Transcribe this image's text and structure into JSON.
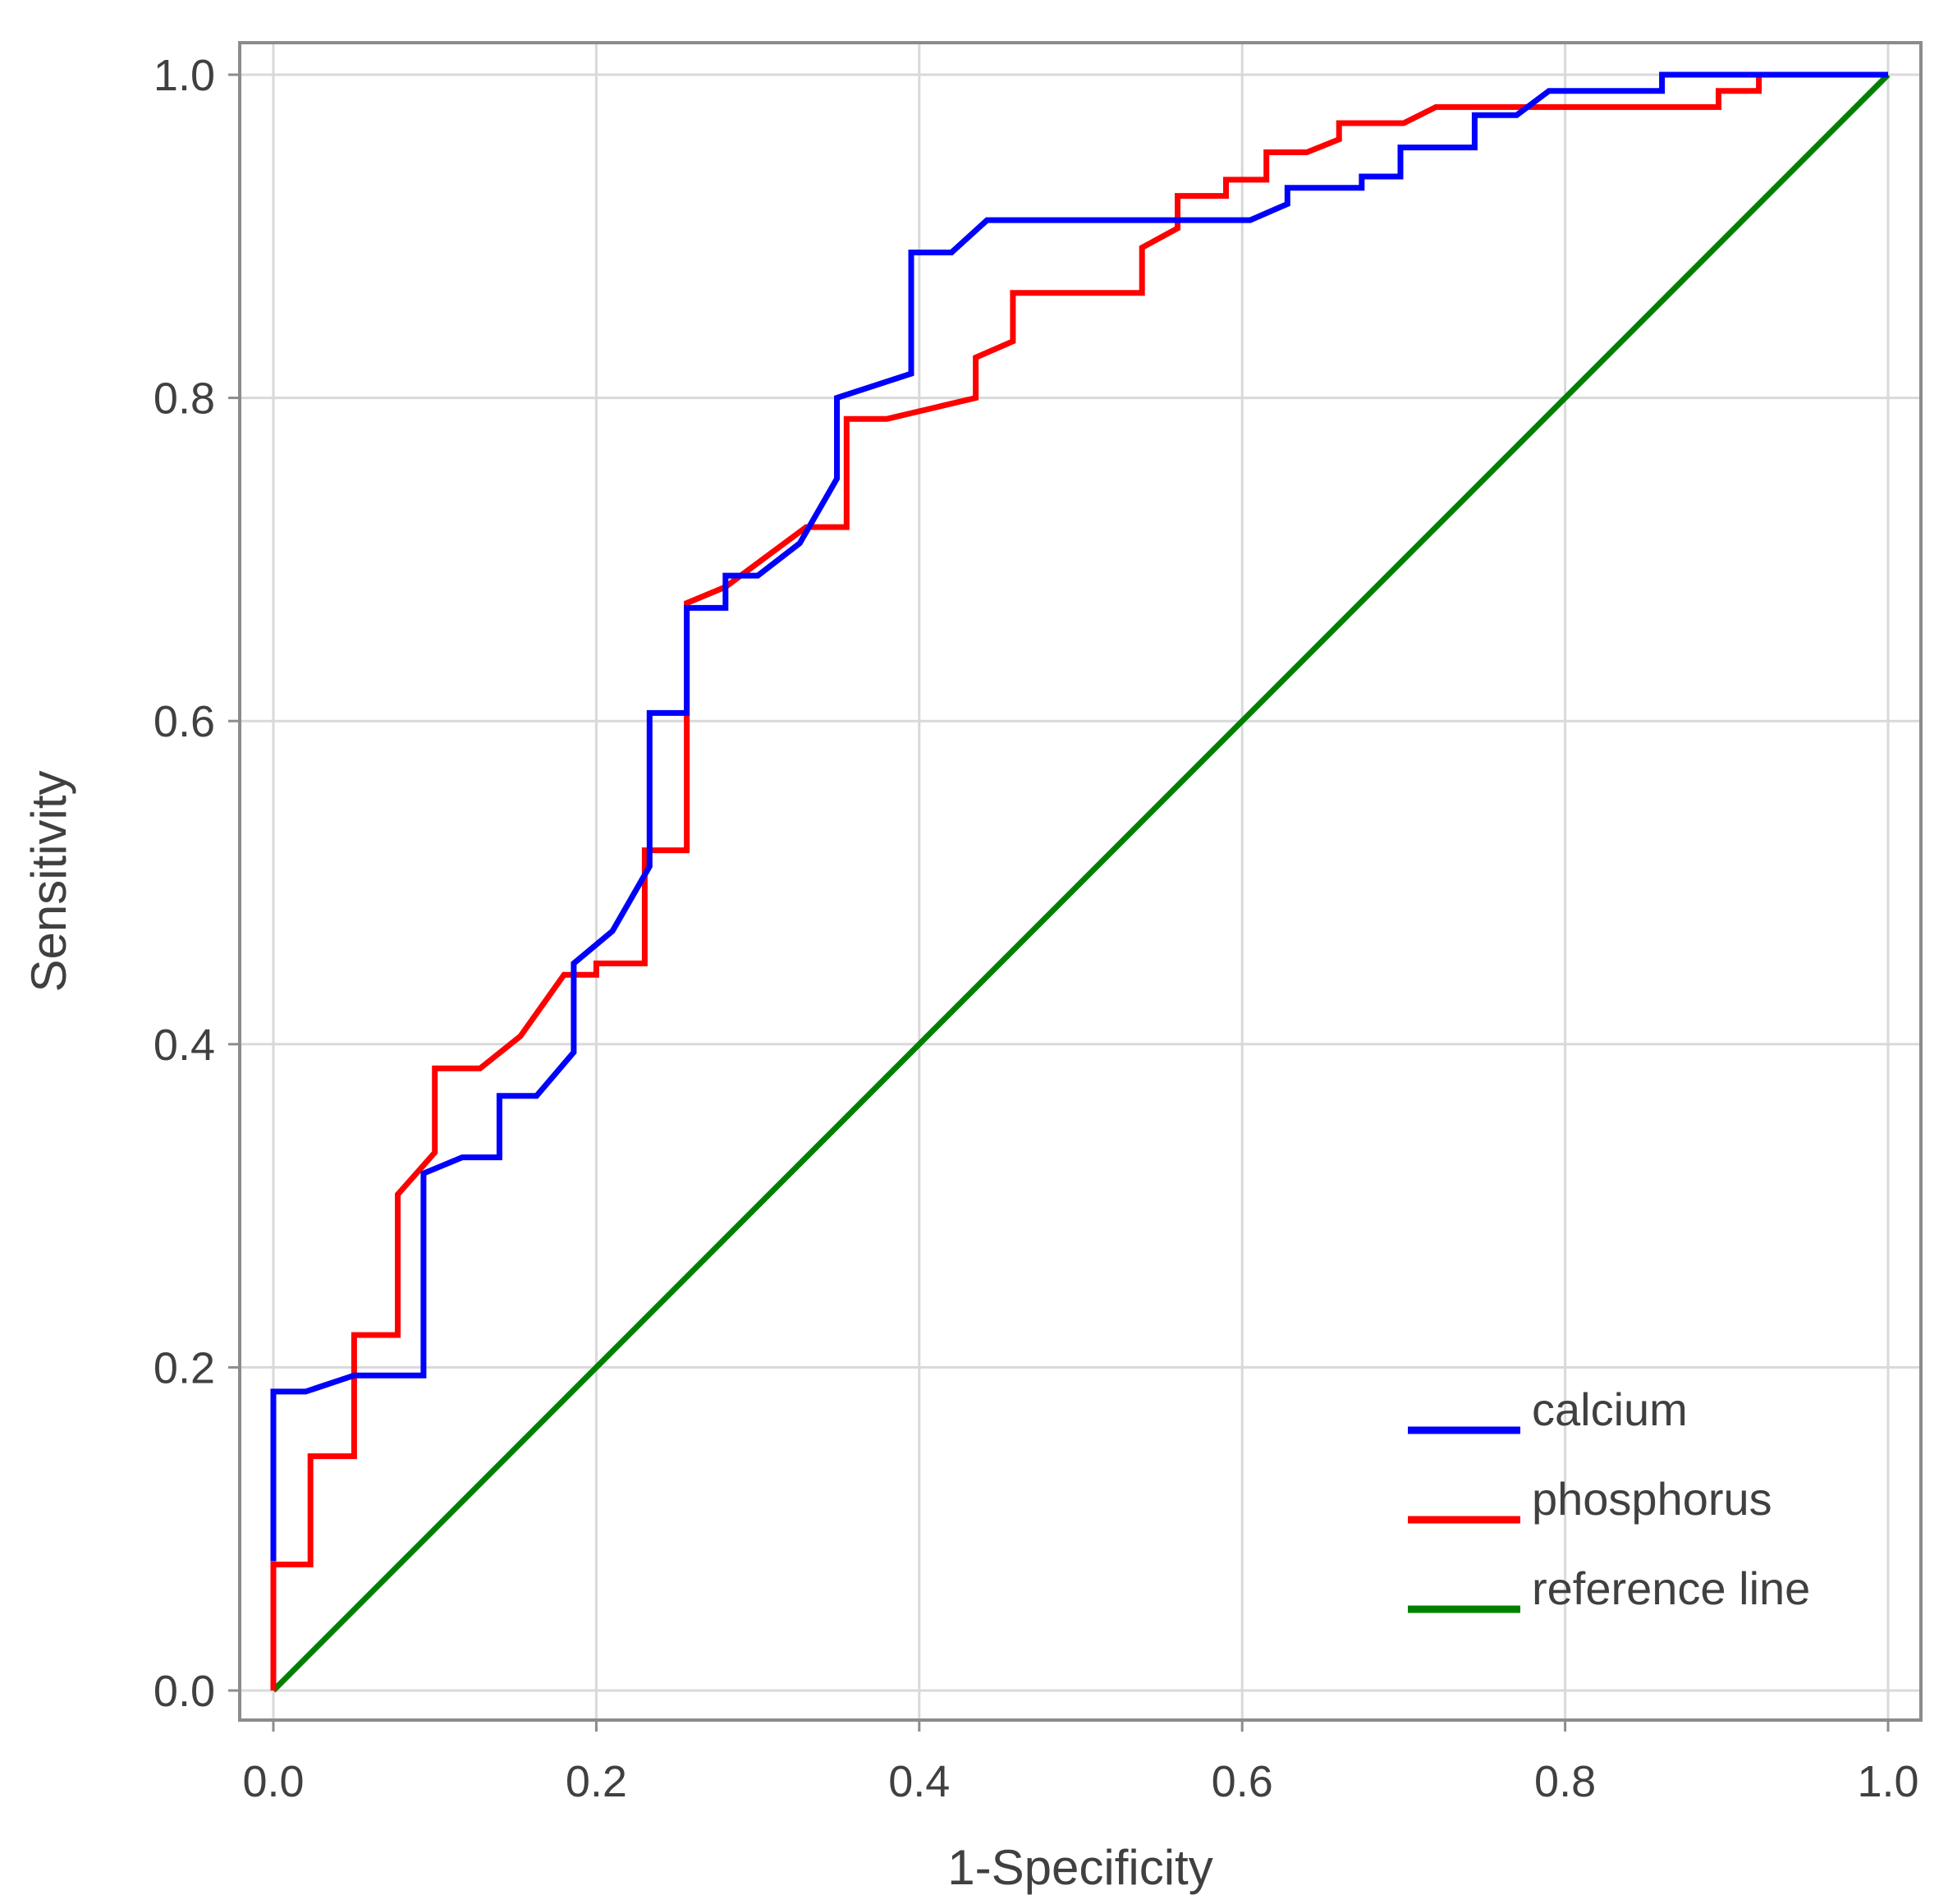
{
  "chart_data": {
    "type": "line",
    "title": "",
    "xlabel": "1-Specificity",
    "ylabel": "Sensitivity",
    "xlim": [
      0,
      1
    ],
    "ylim": [
      0,
      1
    ],
    "grid": true,
    "legend_position": "bottom-right",
    "x_ticks": [
      "0.0",
      "0.2",
      "0.4",
      "0.6",
      "0.8",
      "1.0"
    ],
    "y_ticks": [
      "0.0",
      "0.2",
      "0.4",
      "0.6",
      "0.8",
      "1.0"
    ],
    "series": [
      {
        "name": "calcium",
        "color": "#0000ff",
        "x": [
          0.0,
          0.0,
          0.02,
          0.05,
          0.07,
          0.093,
          0.093,
          0.117,
          0.14,
          0.14,
          0.163,
          0.186,
          0.186,
          0.21,
          0.233,
          0.233,
          0.256,
          0.256,
          0.28,
          0.28,
          0.3,
          0.326,
          0.349,
          0.349,
          0.395,
          0.395,
          0.42,
          0.442,
          0.535,
          0.558,
          0.605,
          0.628,
          0.628,
          0.674,
          0.674,
          0.698,
          0.698,
          0.744,
          0.744,
          0.77,
          0.79,
          0.86,
          0.86,
          0.93,
          1.0
        ],
        "y": [
          0.08,
          0.185,
          0.185,
          0.195,
          0.195,
          0.195,
          0.32,
          0.33,
          0.33,
          0.368,
          0.368,
          0.395,
          0.45,
          0.47,
          0.51,
          0.605,
          0.605,
          0.67,
          0.67,
          0.69,
          0.69,
          0.71,
          0.75,
          0.8,
          0.815,
          0.89,
          0.89,
          0.91,
          0.91,
          0.91,
          0.91,
          0.92,
          0.93,
          0.93,
          0.937,
          0.937,
          0.955,
          0.955,
          0.975,
          0.975,
          0.99,
          0.99,
          1.0,
          1.0,
          1.0
        ]
      },
      {
        "name": "phosphorus",
        "color": "#ff0000",
        "x": [
          0.0,
          0.0,
          0.023,
          0.023,
          0.05,
          0.05,
          0.077,
          0.077,
          0.1,
          0.1,
          0.128,
          0.153,
          0.18,
          0.2,
          0.2,
          0.23,
          0.23,
          0.256,
          0.256,
          0.28,
          0.33,
          0.355,
          0.355,
          0.38,
          0.435,
          0.435,
          0.458,
          0.458,
          0.538,
          0.538,
          0.56,
          0.56,
          0.59,
          0.59,
          0.615,
          0.615,
          0.64,
          0.66,
          0.66,
          0.7,
          0.72,
          0.79,
          0.895,
          0.895,
          0.92,
          0.92,
          1.0
        ],
        "y": [
          0.0,
          0.078,
          0.078,
          0.145,
          0.145,
          0.22,
          0.22,
          0.307,
          0.333,
          0.385,
          0.385,
          0.405,
          0.443,
          0.443,
          0.45,
          0.45,
          0.52,
          0.52,
          0.673,
          0.683,
          0.72,
          0.72,
          0.787,
          0.787,
          0.8,
          0.825,
          0.835,
          0.865,
          0.865,
          0.893,
          0.905,
          0.925,
          0.925,
          0.935,
          0.935,
          0.952,
          0.952,
          0.96,
          0.97,
          0.97,
          0.98,
          0.98,
          0.98,
          0.99,
          0.99,
          1.0,
          1.0
        ]
      },
      {
        "name": "reference line",
        "color": "#008000",
        "x": [
          0.0,
          1.0
        ],
        "y": [
          0.0,
          1.0
        ]
      }
    ]
  }
}
